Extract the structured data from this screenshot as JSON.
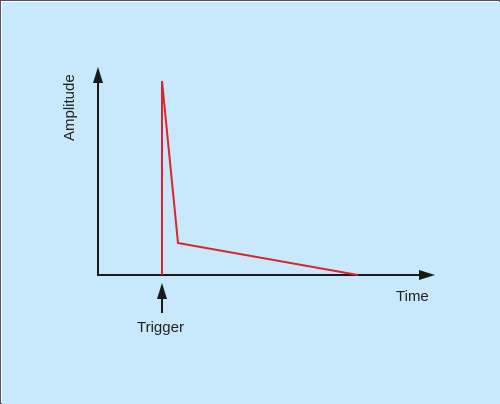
{
  "colors": {
    "background": "#c7e9fb",
    "border": "#555555",
    "axis": "#1a1a1a",
    "signal": "#d9252b"
  },
  "labels": {
    "y_axis": "Amplitude",
    "x_axis": "Time",
    "trigger": "Trigger"
  },
  "icons": {
    "trigger_arrow": "arrow-up-icon"
  }
}
